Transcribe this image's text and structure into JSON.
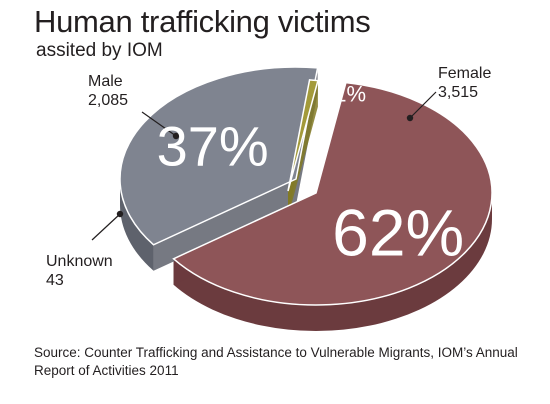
{
  "chart_data": {
    "type": "pie",
    "title": "Human trafficking victims",
    "subtitle": "assited by IOM",
    "slices": [
      {
        "name": "Female",
        "value": 3515,
        "value_label": "3,515",
        "percent_label": "62%",
        "color": "#8e5558",
        "side": "#6b3b3e"
      },
      {
        "name": "Male",
        "value": 2085,
        "value_label": "2,085",
        "percent_label": "37%",
        "color": "#7f8490",
        "side": "#5e626c"
      },
      {
        "name": "Unknown",
        "value": 43,
        "value_label": "43",
        "percent_label": "1%",
        "color": "#a39a3a",
        "side": "#827a24"
      }
    ],
    "source": "Source: Counter Trafficking and Assistance to Vulnerable Migrants, IOM’s Annual Report of Activities 2011"
  }
}
